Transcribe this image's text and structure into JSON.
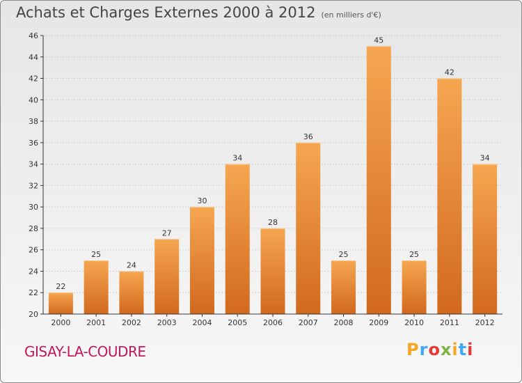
{
  "header": {
    "title": "Achats et Charges Externes 2000 à 2012",
    "subtitle": "(en milliers d'€)"
  },
  "footer": {
    "commune": "GISAY-LA-COUDRE",
    "logo_letters": [
      "P",
      "r",
      "o",
      "x",
      "i",
      "t",
      "i"
    ],
    "logo_colors": [
      "#f5a623",
      "#3fa9f5",
      "#e53935",
      "#7cb342",
      "#f5a623",
      "#3fa9f5",
      "#e53935"
    ]
  },
  "colors": {
    "bar_light": "#f6a650",
    "bar_dark": "#d2691e",
    "grid": "#cfcfcf",
    "axis": "#333333"
  },
  "chart_data": {
    "type": "bar",
    "title": "Achats et Charges Externes 2000 à 2012",
    "subtitle": "(en milliers d'€)",
    "categories": [
      "2000",
      "2001",
      "2002",
      "2003",
      "2004",
      "2005",
      "2006",
      "2007",
      "2008",
      "2009",
      "2010",
      "2011",
      "2012"
    ],
    "values": [
      22,
      25,
      24,
      27,
      30,
      34,
      28,
      36,
      25,
      45,
      25,
      42,
      34
    ],
    "ylim": [
      20,
      46
    ],
    "yticks": [
      20,
      22,
      24,
      26,
      28,
      30,
      32,
      34,
      36,
      38,
      40,
      42,
      44,
      46
    ],
    "grid": true,
    "xlabel": "",
    "ylabel": ""
  }
}
